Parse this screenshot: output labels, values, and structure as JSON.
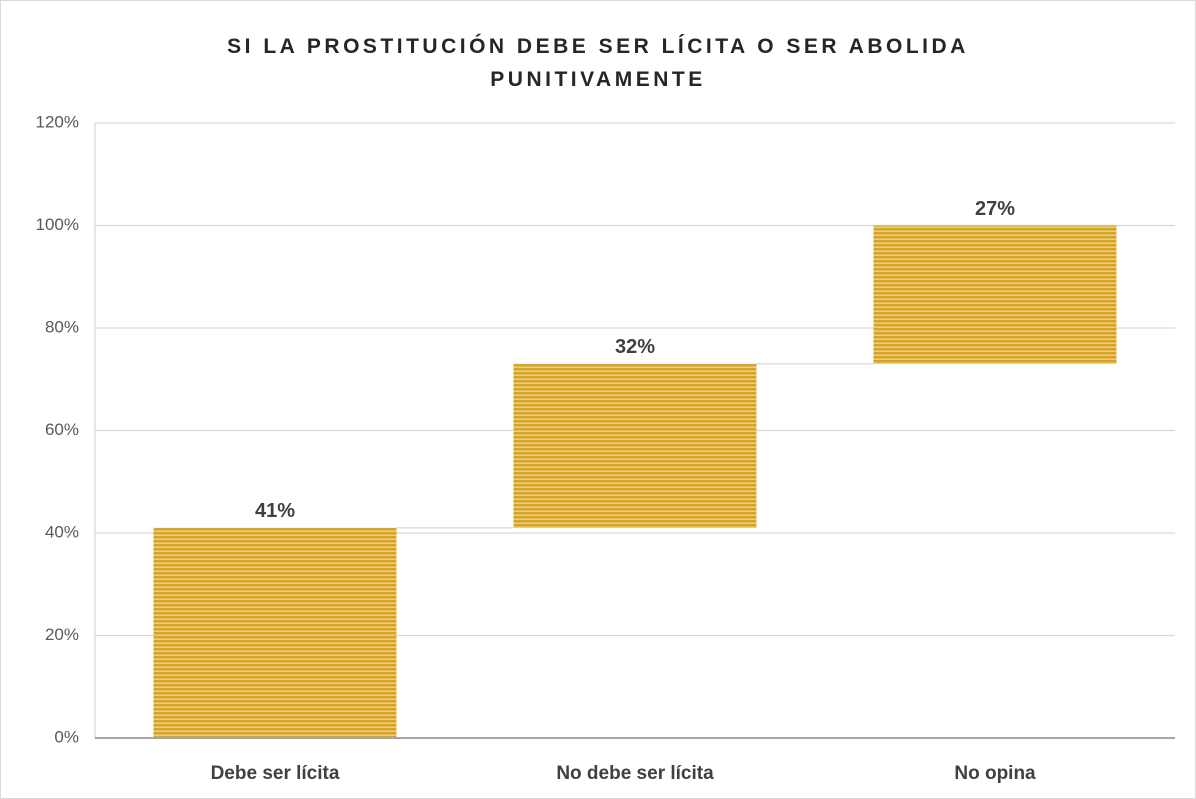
{
  "chart_data": {
    "type": "waterfall",
    "title": "SI LA PROSTITUCIÓN DEBE SER LÍCITA O SER ABOLIDA PUNITIVAMENTE",
    "categories": [
      "Debe ser lícita",
      "No debe ser lícita",
      "No opina"
    ],
    "values": [
      41,
      32,
      27
    ],
    "value_labels": [
      "41%",
      "32%",
      "27%"
    ],
    "color": "#d9a520",
    "ylim": [
      0,
      120
    ],
    "yticks": [
      {
        "value": 0,
        "label": "0%"
      },
      {
        "value": 20,
        "label": "20%"
      },
      {
        "value": 40,
        "label": "40%"
      },
      {
        "value": 60,
        "label": "60%"
      },
      {
        "value": 80,
        "label": "80%"
      },
      {
        "value": 100,
        "label": "100%"
      },
      {
        "value": 120,
        "label": "120%"
      }
    ],
    "grid": true
  }
}
